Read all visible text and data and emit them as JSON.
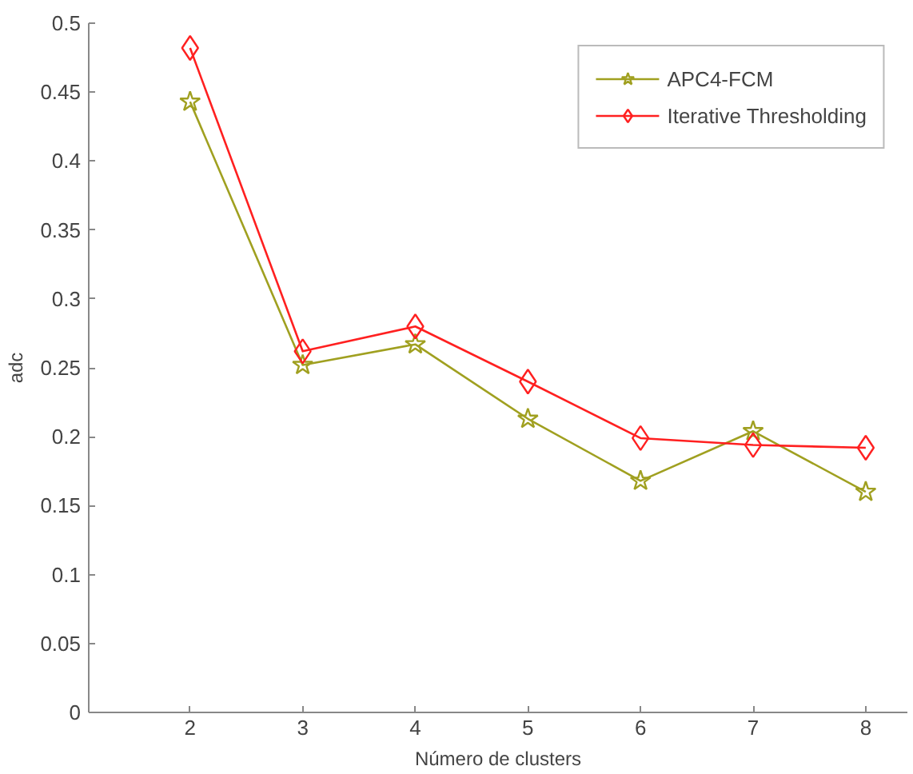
{
  "chart_data": {
    "type": "line",
    "xlabel": "Número de clusters",
    "ylabel": "adc",
    "x": [
      2,
      3,
      4,
      5,
      6,
      7,
      8
    ],
    "series": [
      {
        "name": "APC4-FCM",
        "color": "#a0a020",
        "marker": "star",
        "values": [
          0.443,
          0.252,
          0.267,
          0.213,
          0.168,
          0.204,
          0.16
        ]
      },
      {
        "name": "Iterative Thresholding",
        "color": "#ff2020",
        "marker": "diamond",
        "values": [
          0.482,
          0.262,
          0.28,
          0.24,
          0.199,
          0.194,
          0.192
        ]
      }
    ],
    "xlim": [
      1.1,
      8.37
    ],
    "xticks": [
      2,
      3,
      4,
      5,
      6,
      7,
      8
    ],
    "ylim": [
      0,
      0.5
    ],
    "yticks": [
      0,
      0.05,
      0.1,
      0.15,
      0.2,
      0.25,
      0.3,
      0.35,
      0.4,
      0.45,
      0.5
    ],
    "grid": false,
    "legend": "top right",
    "line_style": "solid"
  }
}
